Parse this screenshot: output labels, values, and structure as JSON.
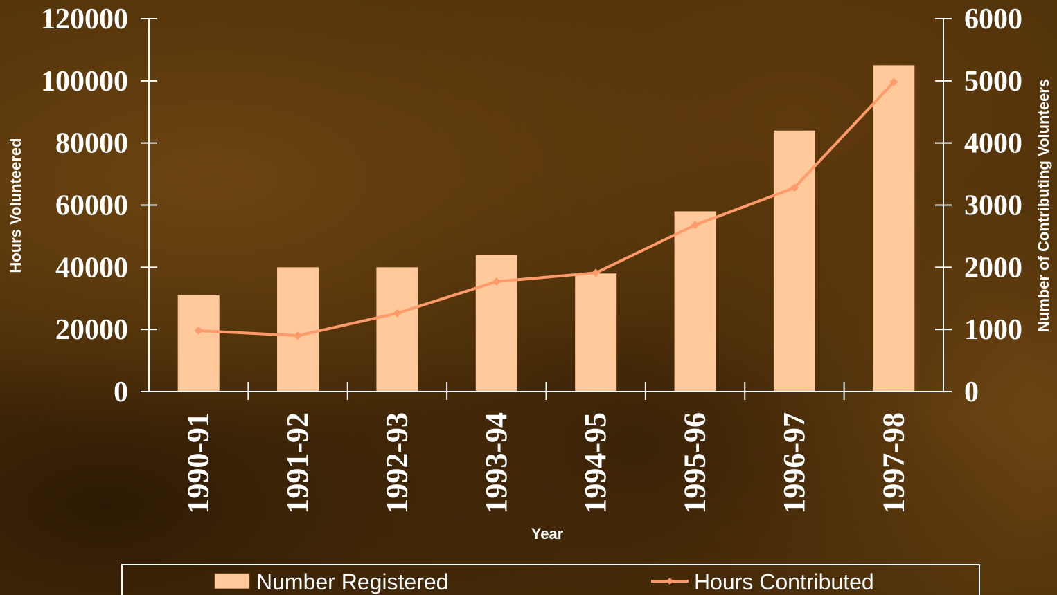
{
  "chart_data": {
    "type": "bar",
    "categories": [
      "1990-91",
      "1991-92",
      "1992-93",
      "1993-94",
      "1994-95",
      "1995-96",
      "1996-97",
      "1997-98"
    ],
    "series": [
      {
        "name": "Number Registered",
        "type": "bar",
        "axis": "left",
        "values": [
          31000,
          40000,
          40000,
          44000,
          38000,
          58000,
          84000,
          105000
        ]
      },
      {
        "name": "Hours Contributed",
        "type": "line",
        "axis": "right",
        "values": [
          980,
          900,
          1260,
          1770,
          1910,
          2680,
          3280,
          4980
        ]
      }
    ],
    "xlabel": "Year",
    "ylabel": "Hours Volunteered",
    "y2label": "Number of Contributing Volunteers",
    "ylim": [
      0,
      120000
    ],
    "y2lim": [
      0,
      6000
    ],
    "yticks": [
      "0",
      "20000",
      "40000",
      "60000",
      "80000",
      "100000",
      "120000"
    ],
    "y2ticks": [
      "0",
      "1000",
      "2000",
      "3000",
      "4000",
      "5000",
      "6000"
    ],
    "grid": false,
    "legend": "bottom"
  },
  "colors": {
    "bar": "#ffc99c",
    "line": "#ff9a6a",
    "axis": "#ffffff",
    "text": "#ffffff"
  }
}
